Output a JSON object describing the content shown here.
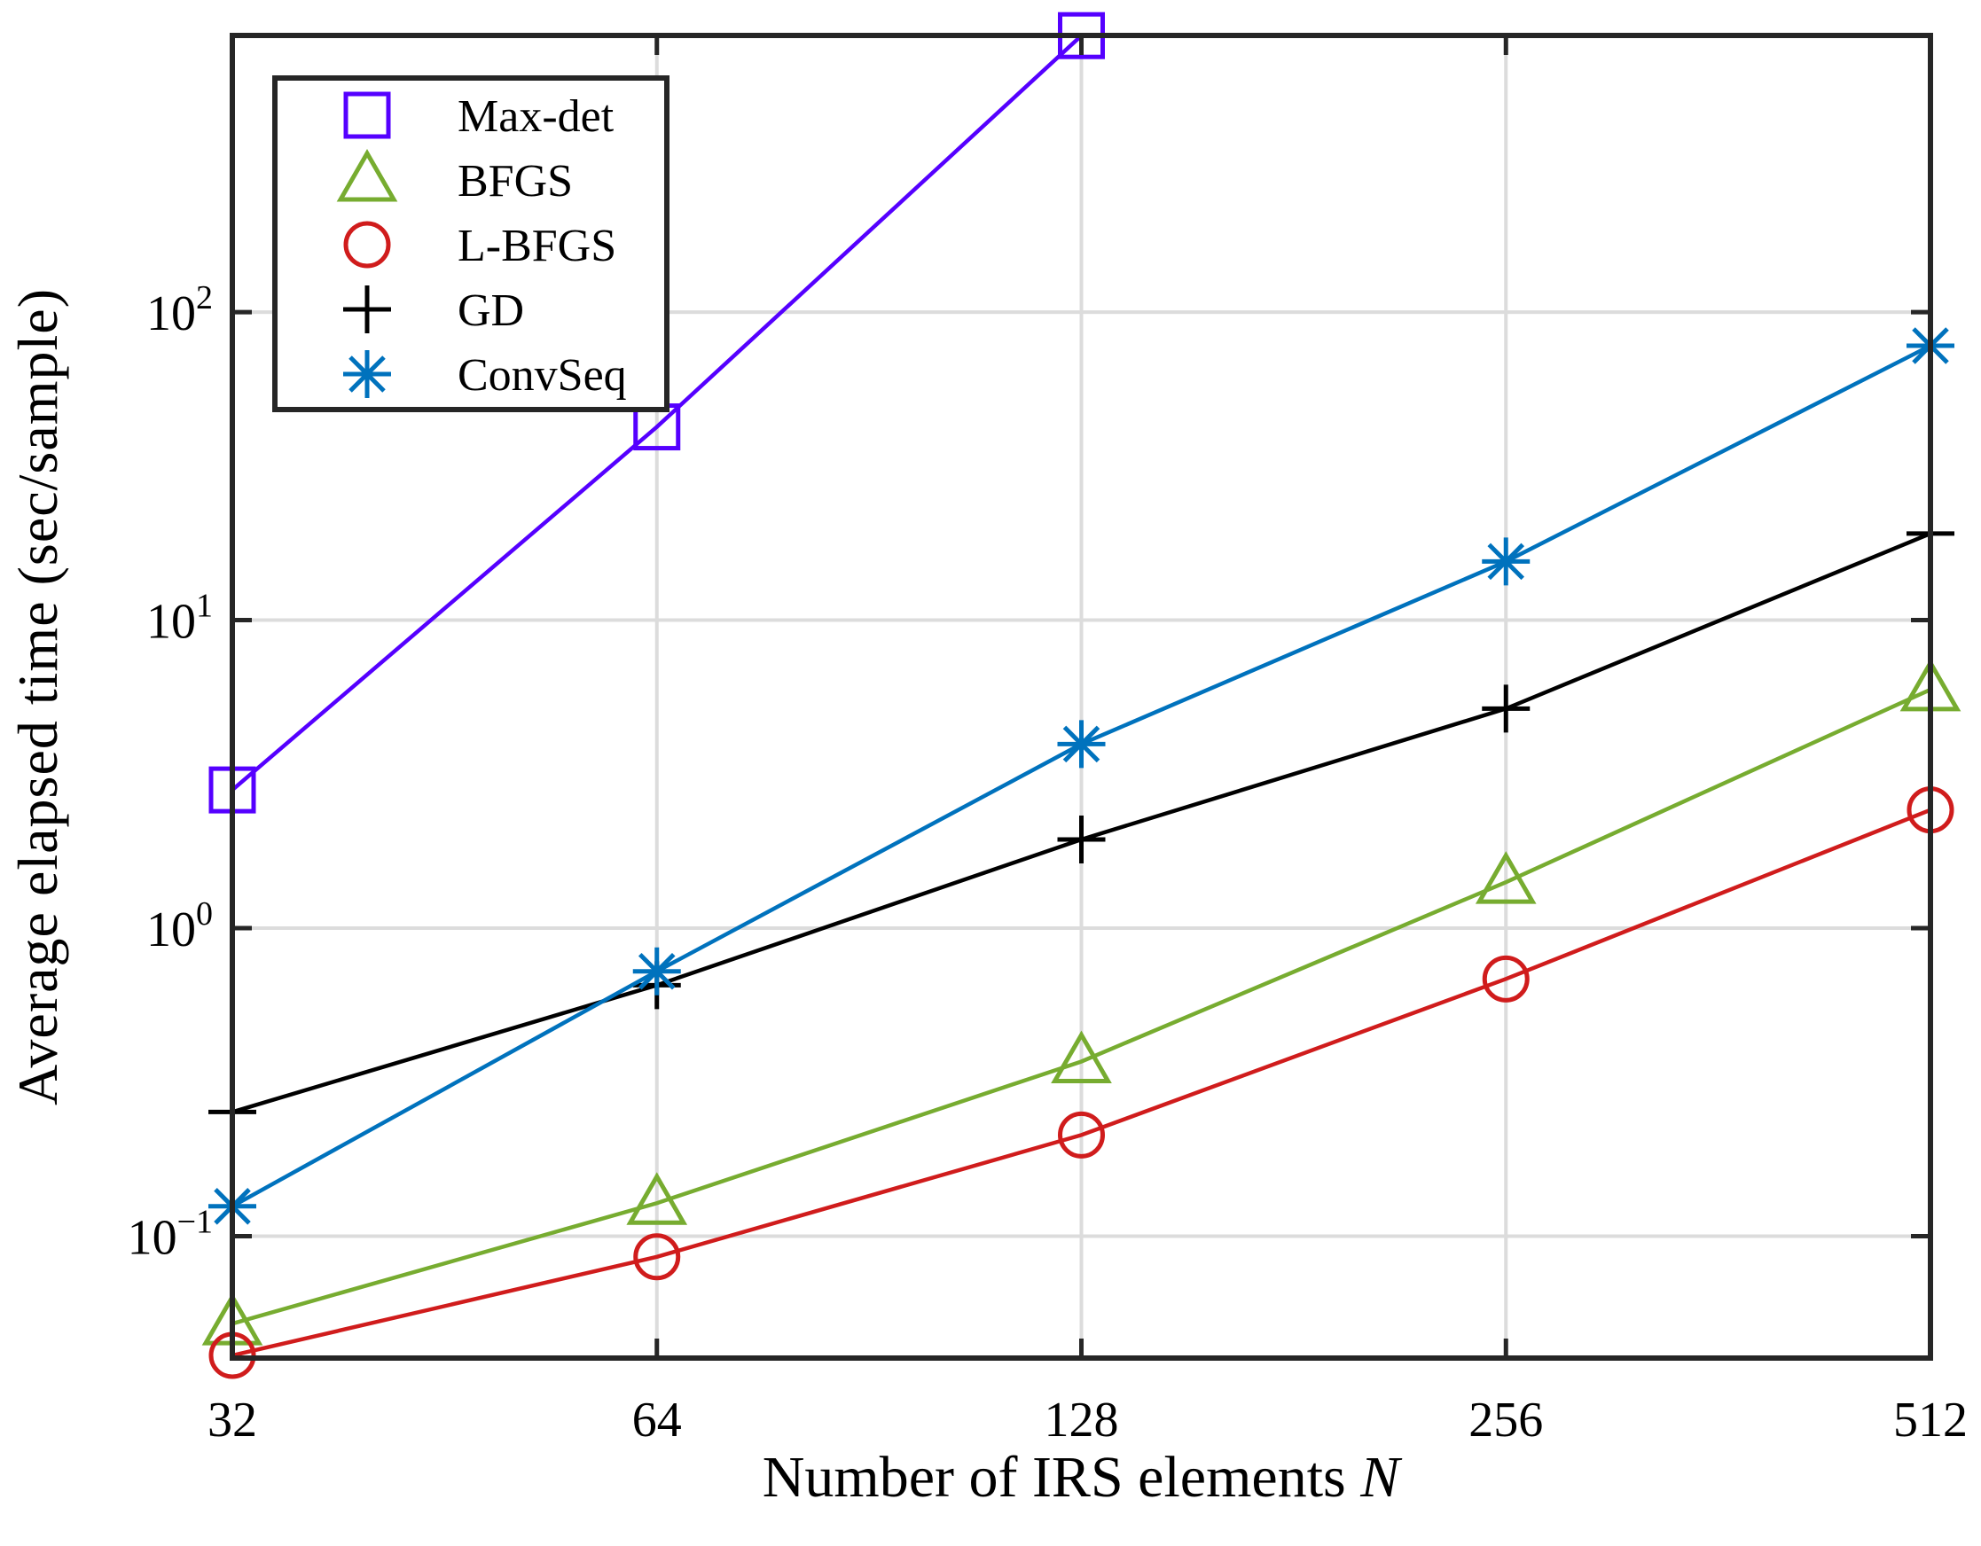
{
  "chart_data": {
    "type": "line",
    "title": "",
    "xlabel": "Number of IRS elements N",
    "ylabel": "Average elapsed time (sec/sample)",
    "x_scale": "log2",
    "y_scale": "log10",
    "x": [
      32,
      64,
      128,
      256,
      512
    ],
    "xticks": [
      "32",
      "64",
      "128",
      "256",
      "512"
    ],
    "yticks": [
      {
        "base": "10",
        "exp": "−1",
        "value": 0.1
      },
      {
        "base": "10",
        "exp": "0",
        "value": 1
      },
      {
        "base": "10",
        "exp": "1",
        "value": 10
      },
      {
        "base": "10",
        "exp": "2",
        "value": 100
      }
    ],
    "xlim": [
      32,
      512
    ],
    "ylim": [
      0.0402,
      791
    ],
    "grid": true,
    "legend_position": "top-left",
    "series": [
      {
        "name": "Max-det",
        "marker": "square",
        "color": "#5500FF",
        "values": [
          2.81,
          42.4,
          790,
          null,
          null
        ]
      },
      {
        "name": "BFGS",
        "marker": "triangle",
        "color": "#77AC30",
        "values": [
          0.052,
          0.128,
          0.369,
          1.41,
          5.95
        ]
      },
      {
        "name": "L-BFGS",
        "marker": "circle",
        "color": "#D01C1C",
        "values": [
          0.041,
          0.0857,
          0.213,
          0.684,
          2.42
        ]
      },
      {
        "name": "GD",
        "marker": "plus",
        "color": "#000000",
        "values": [
          0.253,
          0.653,
          1.94,
          5.16,
          19.1
        ]
      },
      {
        "name": "ConvSeq",
        "marker": "asterisk",
        "color": "#0072BD",
        "values": [
          0.125,
          0.724,
          3.96,
          15.5,
          77.8
        ]
      }
    ]
  }
}
